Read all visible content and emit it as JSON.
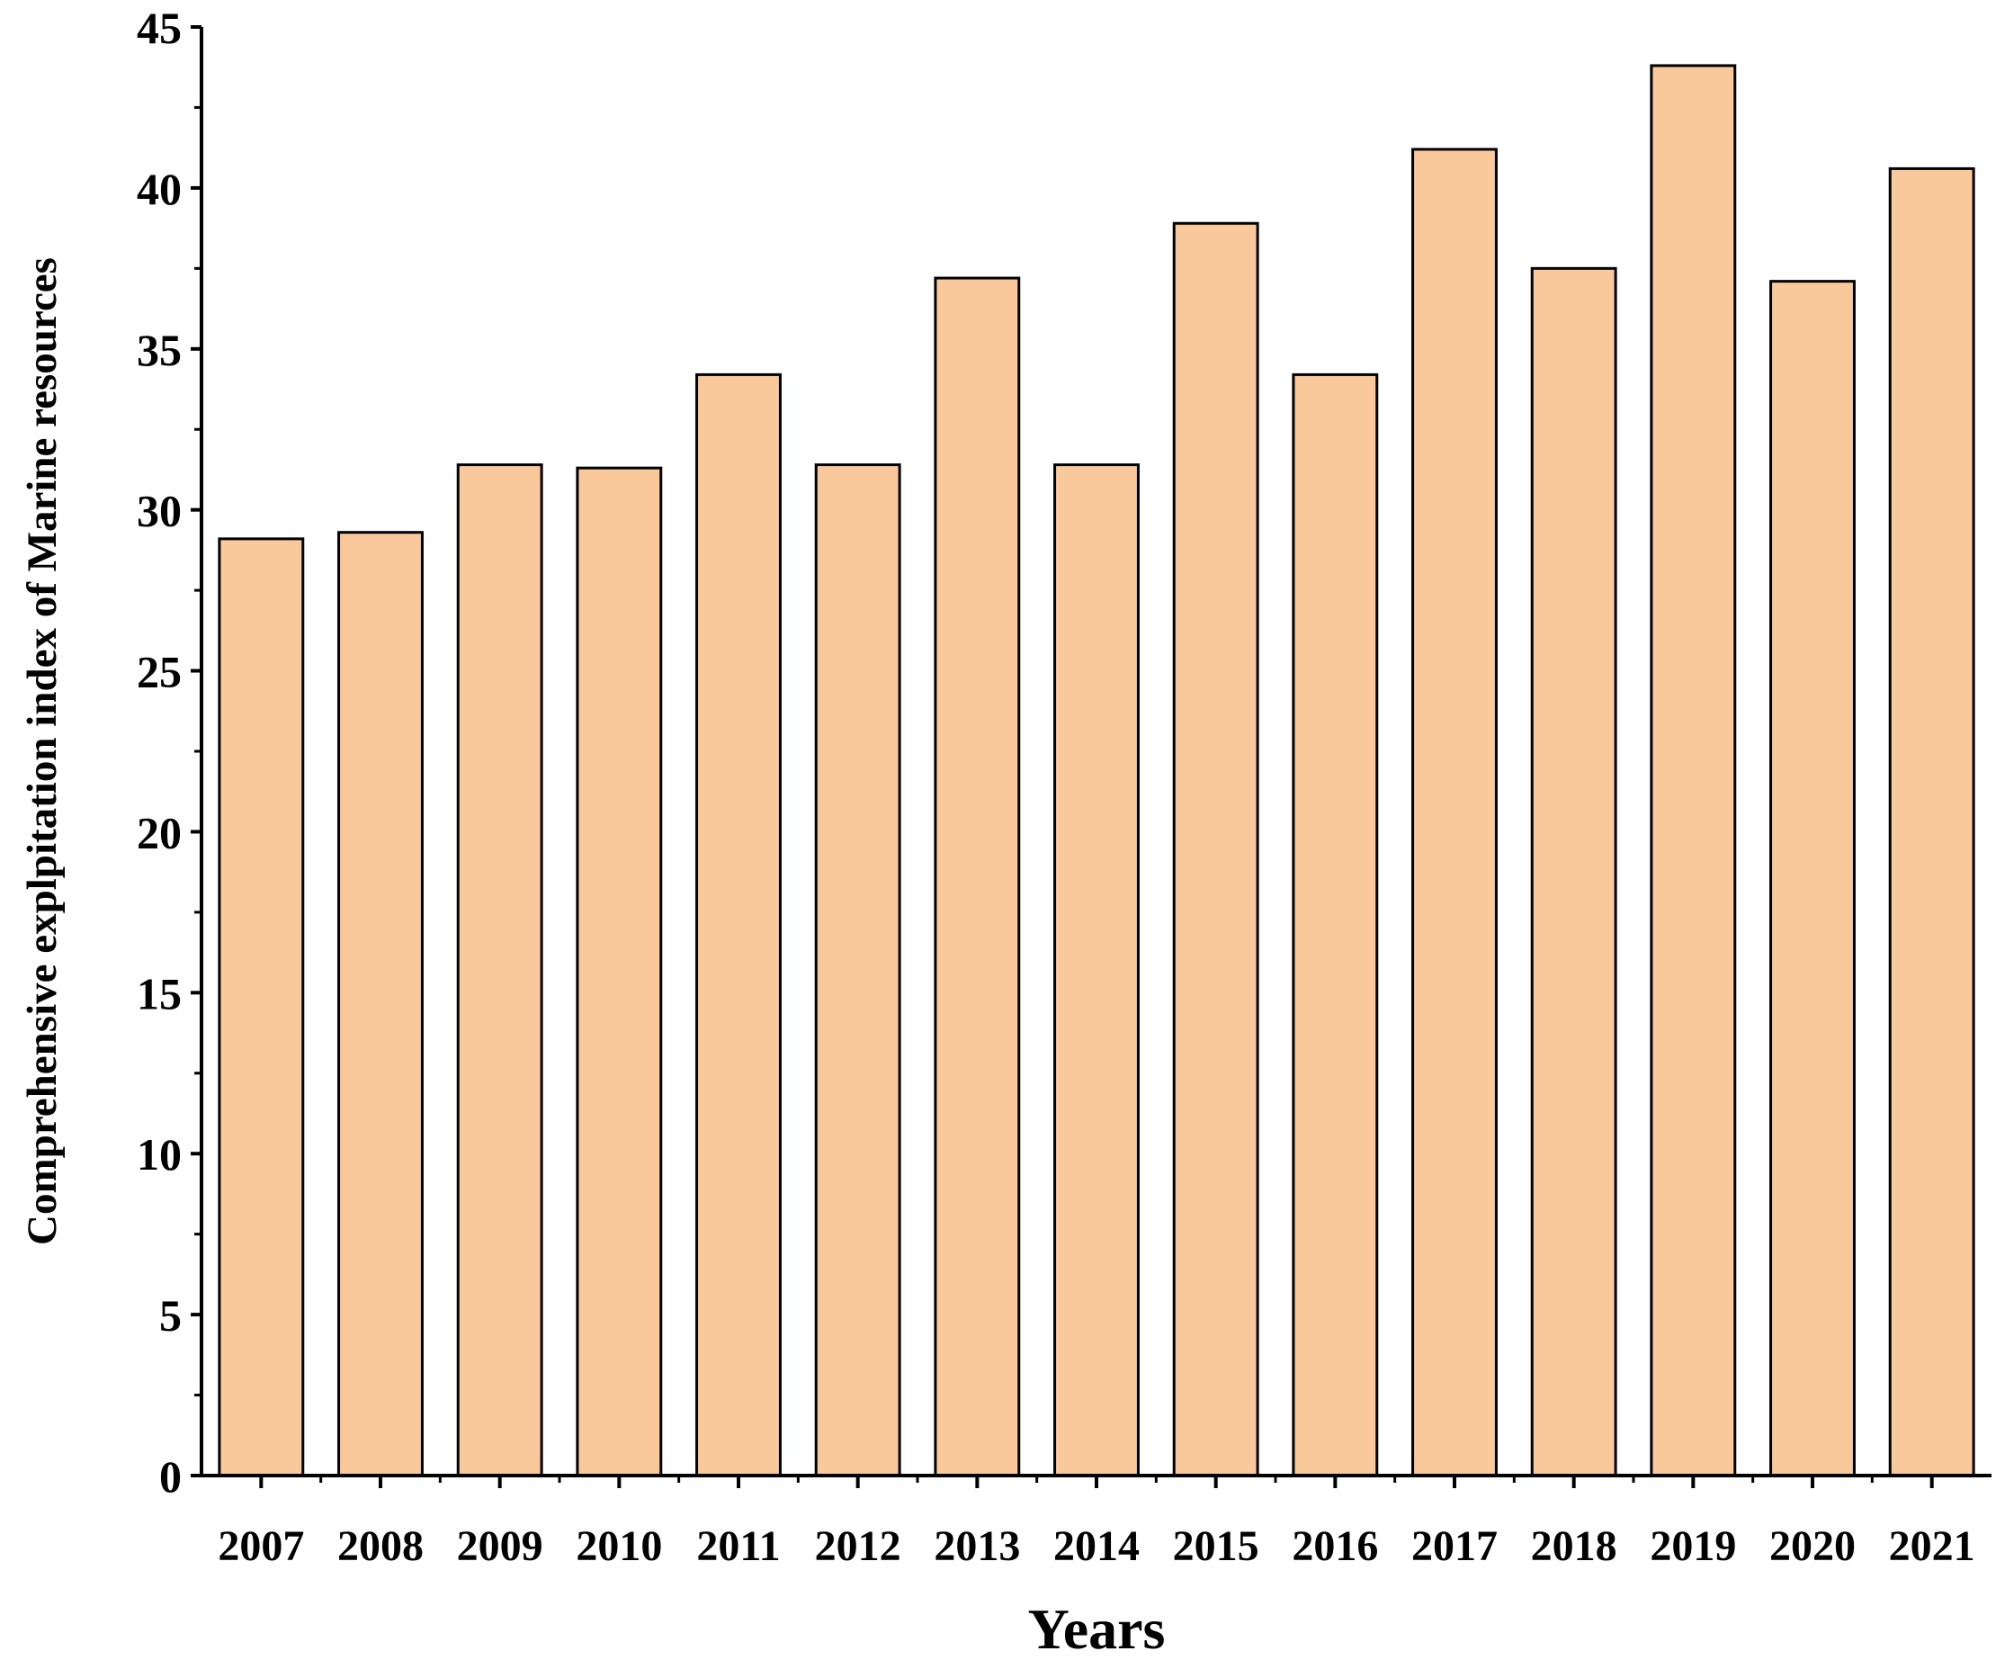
{
  "chart_data": {
    "type": "bar",
    "categories": [
      "2007",
      "2008",
      "2009",
      "2010",
      "2011",
      "2012",
      "2013",
      "2014",
      "2015",
      "2016",
      "2017",
      "2018",
      "2019",
      "2020",
      "2021"
    ],
    "values": [
      29.1,
      29.3,
      31.4,
      31.3,
      34.2,
      31.4,
      37.2,
      31.4,
      38.9,
      34.2,
      41.2,
      37.5,
      43.8,
      37.1,
      40.6
    ],
    "title": "",
    "xlabel": "Years",
    "ylabel": "Comprehensive explpitation index of Marine resources",
    "ylim": [
      0,
      45
    ],
    "yticks": [
      "0",
      "5",
      "10",
      "15",
      "20",
      "25",
      "30",
      "35",
      "40",
      "45"
    ],
    "bar_color": "#f9c89b",
    "bar_edge_color": "#000000",
    "grid": false,
    "legend": "none"
  }
}
